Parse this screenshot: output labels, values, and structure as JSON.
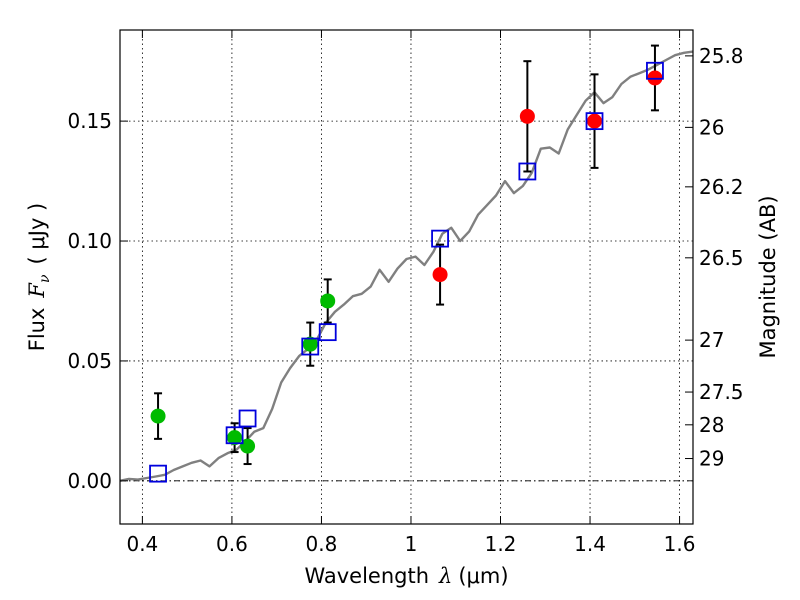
{
  "chart_data": {
    "type": "scatter",
    "xlabel_prefix": "Wavelength",
    "xlabel_symbol": "λ",
    "xlabel_unit": "(μm)",
    "ylabel_prefix": "Flux",
    "ylabel_symbol": "F",
    "ylabel_subscript": "ν",
    "ylabel_unit": "( μJy )",
    "y2label": "Magnitude (AB)",
    "xlim": [
      0.35,
      1.63
    ],
    "ylim": [
      -0.018,
      0.188
    ],
    "x_ticks": [
      0.4,
      0.6,
      0.8,
      1.0,
      1.2,
      1.4,
      1.6
    ],
    "x_tick_labels": [
      "0.4",
      "0.6",
      "0.8",
      "1",
      "1.2",
      "1.4",
      "1.6"
    ],
    "y_ticks": [
      0.0,
      0.05,
      0.1,
      0.15
    ],
    "y_tick_labels": [
      "0.00",
      "0.05",
      "0.10",
      "0.15"
    ],
    "mag_ticks": [
      25.8,
      26,
      26.2,
      26.5,
      27,
      27.5,
      28,
      29
    ],
    "mag_tick_labels": [
      "25.8",
      "26",
      "26.2",
      "26.5",
      "27",
      "27.5",
      "28",
      "29"
    ],
    "colors": {
      "model": "#808080",
      "optical": "#00bb00",
      "infrared": "#ff0000",
      "model_photometry": "#0000dd",
      "errorbar": "#000000"
    },
    "series": [
      {
        "name": "model spectrum",
        "kind": "line",
        "x": [
          0.35,
          0.37,
          0.39,
          0.41,
          0.43,
          0.45,
          0.47,
          0.49,
          0.51,
          0.53,
          0.55,
          0.57,
          0.59,
          0.61,
          0.63,
          0.65,
          0.67,
          0.69,
          0.71,
          0.73,
          0.75,
          0.77,
          0.79,
          0.81,
          0.83,
          0.85,
          0.87,
          0.89,
          0.91,
          0.93,
          0.95,
          0.97,
          0.99,
          1.01,
          1.03,
          1.05,
          1.07,
          1.09,
          1.11,
          1.13,
          1.15,
          1.17,
          1.19,
          1.21,
          1.23,
          1.25,
          1.27,
          1.29,
          1.31,
          1.33,
          1.35,
          1.37,
          1.39,
          1.41,
          1.43,
          1.45,
          1.47,
          1.49,
          1.51,
          1.53,
          1.55,
          1.57,
          1.59,
          1.61,
          1.63
        ],
        "y": [
          0.0,
          0.0008,
          0.0005,
          0.0012,
          0.0018,
          0.0025,
          0.0045,
          0.006,
          0.0075,
          0.0085,
          0.006,
          0.0095,
          0.0115,
          0.013,
          0.0165,
          0.0205,
          0.022,
          0.03,
          0.041,
          0.047,
          0.052,
          0.055,
          0.059,
          0.066,
          0.0705,
          0.0735,
          0.077,
          0.078,
          0.081,
          0.088,
          0.083,
          0.0885,
          0.0925,
          0.0935,
          0.09,
          0.0955,
          0.103,
          0.1055,
          0.1,
          0.104,
          0.111,
          0.115,
          0.119,
          0.125,
          0.12,
          0.123,
          0.1285,
          0.1385,
          0.139,
          0.1365,
          0.1465,
          0.1525,
          0.1585,
          0.162,
          0.1575,
          0.16,
          0.1655,
          0.1685,
          0.17,
          0.1715,
          0.1735,
          0.1755,
          0.1775,
          0.1785,
          0.179
        ]
      },
      {
        "name": "optical photometry",
        "kind": "points-errorbars",
        "x": [
          0.435,
          0.606,
          0.635,
          0.775,
          0.814
        ],
        "y": [
          0.027,
          0.018,
          0.0145,
          0.057,
          0.075
        ],
        "yerr": [
          0.0095,
          0.006,
          0.0075,
          0.009,
          0.009
        ]
      },
      {
        "name": "infrared photometry",
        "kind": "points-errorbars",
        "x": [
          1.065,
          1.26,
          1.41,
          1.545
        ],
        "y": [
          0.086,
          0.152,
          0.15,
          0.168
        ],
        "yerr": [
          0.0125,
          0.023,
          0.0195,
          0.0135
        ]
      },
      {
        "name": "model photometry",
        "kind": "squares",
        "x": [
          0.435,
          0.606,
          0.635,
          0.775,
          0.814,
          1.065,
          1.26,
          1.41,
          1.545
        ],
        "y": [
          0.003,
          0.019,
          0.026,
          0.056,
          0.062,
          0.101,
          0.129,
          0.15,
          0.171
        ]
      }
    ]
  }
}
